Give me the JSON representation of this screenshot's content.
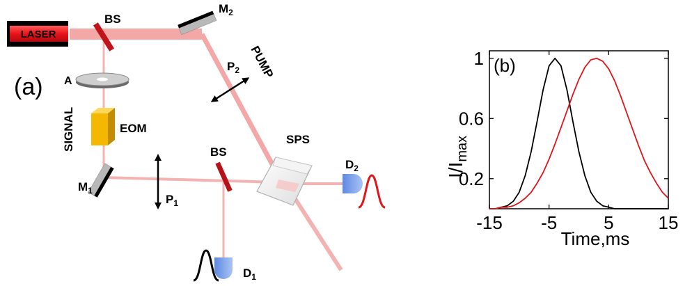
{
  "panel_a": {
    "label": "(a)",
    "laser": "LASER",
    "bs_top": "BS",
    "bs_mid": "BS",
    "m2": "M",
    "m2_sub": "2",
    "m1": "M",
    "m1_sub": "1",
    "pump": "PUMP",
    "p2": "P",
    "p2_sub": "2",
    "p1": "P",
    "p1_sub": "1",
    "attenuator": "A",
    "signal": "SIGNAL",
    "eom": "EOM",
    "sps": "SPS",
    "d1": "D",
    "d1_sub": "1",
    "d2": "D",
    "d2_sub": "2"
  },
  "panel_b": {
    "label": "(b)",
    "ylabel_main": "I/I",
    "ylabel_sub": "max",
    "xlabel": "Time,ms"
  },
  "colors": {
    "beam": "#f4b0b0",
    "laser_red": "#e8141a",
    "bs_red": "#c0141a",
    "eom_yellow": "#f5b800",
    "detector_blue": "#7fa6ee",
    "curve_red": "#e0141a",
    "curve_black": "#000000"
  },
  "chart_data": {
    "type": "line",
    "title": "",
    "xlabel": "Time,ms",
    "ylabel": "I/Imax",
    "xlim": [
      -15,
      15
    ],
    "ylim": [
      0,
      1.05
    ],
    "xticks": [
      -15,
      -5,
      5,
      15
    ],
    "yticks": [
      0.2,
      0.6,
      1
    ],
    "xtick_labels": [
      "-15",
      "-5",
      "5",
      "15"
    ],
    "ytick_labels": [
      "0.2",
      "0.6",
      "1"
    ],
    "series": [
      {
        "color": "#000000",
        "x": [
          -15,
          -14,
          -13,
          -12,
          -11,
          -10,
          -9,
          -8,
          -7,
          -6,
          -5,
          -4,
          -3,
          -2,
          -1,
          0,
          1,
          2,
          3,
          4,
          5,
          6,
          7,
          8,
          9,
          10,
          11,
          12,
          13,
          14,
          15
        ],
        "y": [
          0.0,
          0.0,
          0.01,
          0.02,
          0.05,
          0.11,
          0.22,
          0.38,
          0.58,
          0.79,
          0.95,
          1.0,
          0.95,
          0.79,
          0.58,
          0.38,
          0.22,
          0.11,
          0.05,
          0.02,
          0.01,
          0.0,
          0.0,
          0.0,
          0.0,
          0.0,
          0.0,
          0.0,
          0.0,
          0.0,
          0.0
        ]
      },
      {
        "color": "#e0141a",
        "x": [
          -15,
          -14,
          -13,
          -12,
          -11,
          -10,
          -9,
          -8,
          -7,
          -6,
          -5,
          -4,
          -3,
          -2,
          -1,
          0,
          1,
          2,
          3,
          4,
          5,
          6,
          7,
          8,
          9,
          10,
          11,
          12,
          13,
          14,
          15
        ],
        "y": [
          0.0,
          0.0,
          0.01,
          0.01,
          0.02,
          0.04,
          0.07,
          0.11,
          0.17,
          0.24,
          0.33,
          0.43,
          0.54,
          0.65,
          0.76,
          0.86,
          0.94,
          0.99,
          1.0,
          0.98,
          0.93,
          0.85,
          0.75,
          0.64,
          0.53,
          0.42,
          0.32,
          0.24,
          0.17,
          0.11,
          0.07
        ]
      }
    ]
  }
}
